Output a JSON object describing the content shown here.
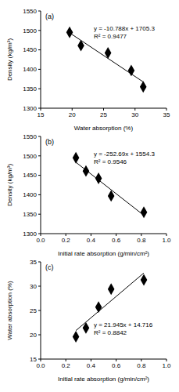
{
  "chart_data": [
    {
      "type": "scatter",
      "title": "(a)",
      "x_label": "Water absorption (%)",
      "y_label": "Density (kg/m³)",
      "x": [
        19.6,
        21.4,
        25.7,
        29.4,
        31.3
      ],
      "values": [
        1495,
        1461,
        1442,
        1397,
        1355
      ],
      "color": "#000000",
      "marker": "diamond",
      "grid": false,
      "xlim": [
        15,
        35
      ],
      "xticks": [
        15,
        20,
        25,
        30,
        35
      ],
      "ylim": [
        1300,
        1550
      ],
      "yticks": [
        1300,
        1350,
        1400,
        1450,
        1500,
        1550
      ],
      "trendline": {
        "slope": -10.788,
        "intercept": 1705.3
      },
      "annotations": [
        "y = -10.788x + 1705.3",
        "R² = 0.9477"
      ]
    },
    {
      "type": "scatter",
      "title": "(b)",
      "x_label": "Initial rate absorption (g/min/cm²)",
      "y_label": "Density (kg/m³)",
      "x": [
        0.28,
        0.36,
        0.46,
        0.56,
        0.82
      ],
      "values": [
        1495,
        1461,
        1442,
        1397,
        1355
      ],
      "color": "#000000",
      "marker": "diamond",
      "grid": false,
      "xlim": [
        0,
        1
      ],
      "xticks": [
        {
          "value": 0,
          "label": "0.0"
        },
        0.2,
        0.4,
        0.6,
        0.8,
        {
          "value": 1,
          "label": "1.0"
        }
      ],
      "ylim": [
        1300,
        1550
      ],
      "yticks": [
        1300,
        1350,
        1400,
        1450,
        1500,
        1550
      ],
      "trendline": {
        "slope": -252.69,
        "intercept": 1554.3
      },
      "annotations": [
        "y = -252.69x + 1554.3",
        "R² = 0.9546"
      ]
    },
    {
      "type": "scatter",
      "title": "(c)",
      "x_label": "Initial rate absorption (g/min/cm²)",
      "y_label": "Water absorption (%)",
      "x": [
        0.28,
        0.36,
        0.46,
        0.56,
        0.82
      ],
      "values": [
        19.6,
        21.4,
        25.7,
        29.4,
        31.3
      ],
      "color": "#000000",
      "marker": "diamond",
      "grid": false,
      "xlim": [
        0,
        1
      ],
      "xticks": [
        {
          "value": 0,
          "label": "0.0"
        },
        0.2,
        0.4,
        0.6,
        0.8,
        {
          "value": 1,
          "label": "1.0"
        }
      ],
      "ylim": [
        15,
        35
      ],
      "yticks": [
        15,
        20,
        25,
        30,
        35
      ],
      "trendline": {
        "slope": 21.945,
        "intercept": 14.716
      },
      "annotations": [
        "y = 21.945x + 14.716",
        "R² = 0.8842"
      ]
    }
  ]
}
